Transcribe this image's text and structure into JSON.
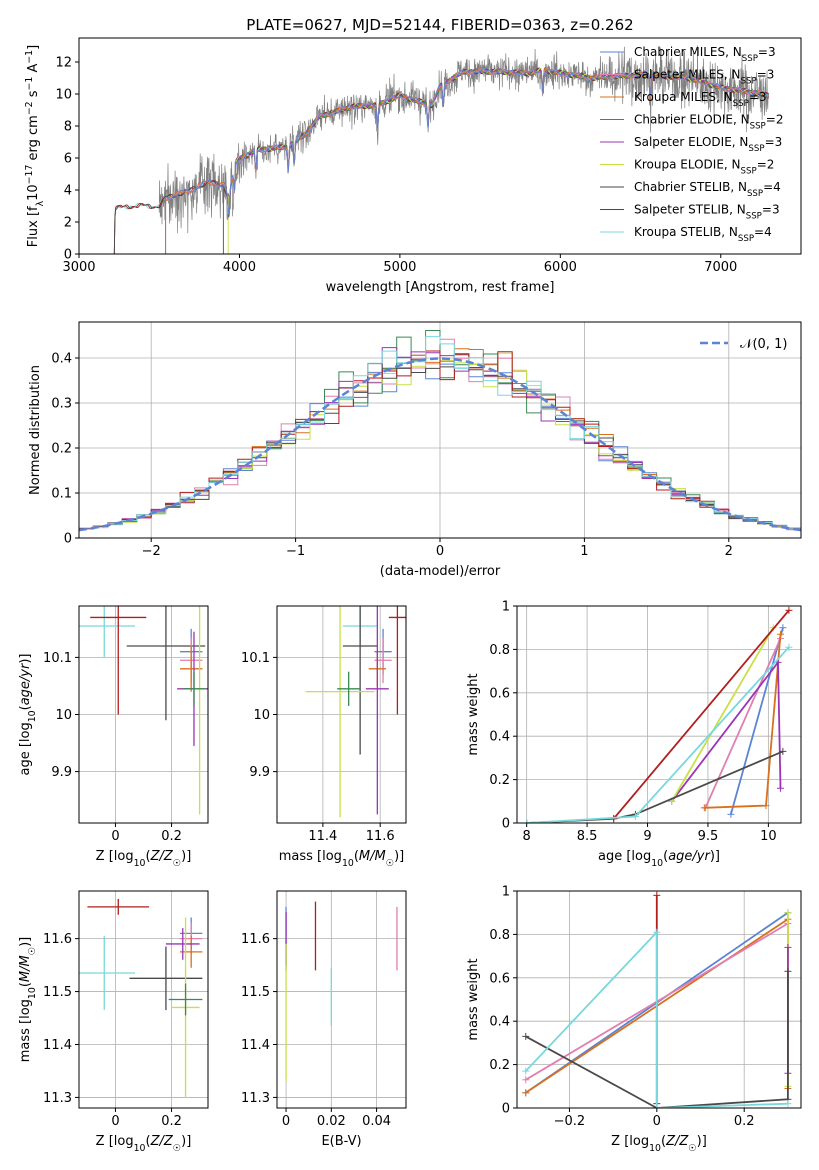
{
  "figure_title": "PLATE=0627, MJD=52144, FIBERID=0363, z=0.262",
  "colors": {
    "Chabrier MILES": "#5b84d6",
    "Salpeter MILES": "#e07fb0",
    "Kroupa MILES": "#d9701e",
    "Chabrier ELODIE": "#3a8a55",
    "Salpeter ELODIE": "#9b35b5",
    "Kroupa ELODIE": "#c8e046",
    "Chabrier STELIB": "#4a4a4a",
    "Salpeter STELIB": "#b01e1e",
    "Kroupa STELIB": "#78d8de",
    "data": "#808080",
    "normal": "#5b84d6"
  },
  "chart_data": [
    {
      "id": "spectrum",
      "type": "line",
      "title": "PLATE=0627, MJD=52144, FIBERID=0363, z=0.262",
      "xlabel": "wavelength [Angstrom, rest frame]",
      "ylabel": "Flux [fλ10⁻¹⁷ erg cm⁻² s⁻¹ A⁻¹]",
      "xlim": [
        3000,
        7500
      ],
      "ylim": [
        0,
        13.5
      ],
      "xticks": [
        3000,
        4000,
        5000,
        6000,
        7000
      ],
      "yticks": [
        0,
        2,
        4,
        6,
        8,
        10,
        12
      ],
      "grid": false,
      "legend_position": "top-right",
      "series": [
        {
          "name": "Chabrier MILES, N",
          "sub": "SSP",
          "n": "=3",
          "start": 3540
        },
        {
          "name": "Salpeter MILES, N",
          "sub": "SSP",
          "n": "=3",
          "start": 3540
        },
        {
          "name": "Kroupa MILES, N",
          "sub": "SSP",
          "n": "=3",
          "start": 3540
        },
        {
          "name": "Chabrier ELODIE, N",
          "sub": "SSP",
          "n": "=2",
          "start": 3900
        },
        {
          "name": "Salpeter ELODIE, N",
          "sub": "SSP",
          "n": "=3",
          "start": 3900
        },
        {
          "name": "Kroupa ELODIE, N",
          "sub": "SSP",
          "n": "=2",
          "start": 3930
        },
        {
          "name": "Chabrier STELIB, N",
          "sub": "SSP",
          "n": "=4",
          "start": 3220
        },
        {
          "name": "Salpeter STELIB, N",
          "sub": "SSP",
          "n": "=3",
          "start": 3220
        },
        {
          "name": "Kroupa STELIB, N",
          "sub": "SSP",
          "n": "=4",
          "start": 3220
        }
      ],
      "continuum": [
        [
          3220,
          0
        ],
        [
          3225,
          2.8
        ],
        [
          3300,
          3.0
        ],
        [
          3500,
          3.0
        ],
        [
          3540,
          3.5
        ],
        [
          3700,
          4.0
        ],
        [
          3800,
          4.5
        ],
        [
          3900,
          4.3
        ],
        [
          3930,
          3.6
        ],
        [
          3980,
          5.8
        ],
        [
          4100,
          6.5
        ],
        [
          4300,
          6.7
        ],
        [
          4400,
          7.4
        ],
        [
          4500,
          8.6
        ],
        [
          4700,
          9.2
        ],
        [
          4860,
          9.3
        ],
        [
          5000,
          9.9
        ],
        [
          5200,
          9.3
        ],
        [
          5250,
          10.5
        ],
        [
          5400,
          11.4
        ],
        [
          5600,
          11.4
        ],
        [
          5800,
          11.3
        ],
        [
          5900,
          11.5
        ],
        [
          6000,
          11.3
        ],
        [
          6200,
          11.0
        ],
        [
          6500,
          11.2
        ],
        [
          6800,
          11.0
        ],
        [
          7000,
          10.4
        ],
        [
          7200,
          10.1
        ],
        [
          7300,
          9.9
        ]
      ],
      "data_range": [
        3500,
        7300
      ]
    },
    {
      "id": "residuals",
      "type": "histogram",
      "xlabel": "(data-model)/error",
      "ylabel": "Normed distribution",
      "xlim": [
        -2.5,
        2.5
      ],
      "ylim": [
        0,
        0.48
      ],
      "xticks": [
        -2,
        -1,
        0,
        1,
        2
      ],
      "yticks": [
        0,
        0.1,
        0.2,
        0.3,
        0.4
      ],
      "grid": true,
      "legend_position": "top-right",
      "normal_label": "N(0,1)",
      "bin_width": 0.1
    },
    {
      "id": "age_vs_Z",
      "type": "errorbar",
      "xlabel": "Z [log10(Z/Z☉)]",
      "ylabel": "age  [log10(age/yr)]",
      "xlim": [
        -0.13,
        0.33
      ],
      "ylim": [
        9.81,
        10.19
      ],
      "xticks": [
        0.0,
        0.2
      ],
      "yticks": [
        9.9,
        10.0,
        10.1
      ],
      "grid": true,
      "points": [
        {
          "s": "Kroupa STELIB",
          "x": -0.04,
          "xerr": 0.11,
          "y": 10.155,
          "yerr": 0.055
        },
        {
          "s": "Salpeter STELIB",
          "x": 0.01,
          "xerr": 0.1,
          "y": 10.17,
          "yerr": 0.17
        },
        {
          "s": "Chabrier STELIB",
          "x": 0.18,
          "xerr": 0.14,
          "y": 10.12,
          "yerr": 0.13
        },
        {
          "s": "Chabrier MILES",
          "x": 0.27,
          "xerr": 0.04,
          "y": 10.11,
          "yerr": 0.04
        },
        {
          "s": "Salpeter MILES",
          "x": 0.27,
          "xerr": 0.04,
          "y": 10.095,
          "yerr": 0.04
        },
        {
          "s": "Kroupa MILES",
          "x": 0.27,
          "xerr": 0.04,
          "y": 10.08,
          "yerr": 0.04
        },
        {
          "s": "Salpeter ELODIE",
          "x": 0.28,
          "xerr": 0.06,
          "y": 10.045,
          "yerr": 0.1
        },
        {
          "s": "Kroupa ELODIE",
          "x": 0.3,
          "xerr": 0.02,
          "y": 10.045,
          "yerr": 0.22
        },
        {
          "s": "Chabrier ELODIE",
          "x": 0.28,
          "xerr": 0.04,
          "y": 10.045,
          "yerr": 0.03
        }
      ]
    },
    {
      "id": "age_vs_mass",
      "type": "errorbar",
      "xlabel": "mass [log10(M/M☉)]",
      "ylabel": "",
      "xlim": [
        11.24,
        11.69
      ],
      "ylim": [
        9.81,
        10.19
      ],
      "xticks": [
        11.4,
        11.6
      ],
      "yticks": [
        9.9,
        10.0,
        10.1
      ],
      "grid": true,
      "points": [
        {
          "s": "Kroupa STELIB",
          "x": 11.53,
          "xerr": 0.06,
          "y": 10.155,
          "yerr": 0.03
        },
        {
          "s": "Salpeter STELIB",
          "x": 11.66,
          "xerr": 0.03,
          "y": 10.17,
          "yerr": 0.17
        },
        {
          "s": "Chabrier STELIB",
          "x": 11.53,
          "xerr": 0.06,
          "y": 10.12,
          "yerr": 0.19
        },
        {
          "s": "Chabrier MILES",
          "x": 11.61,
          "xerr": 0.03,
          "y": 10.11,
          "yerr": 0.04
        },
        {
          "s": "Salpeter MILES",
          "x": 11.61,
          "xerr": 0.03,
          "y": 10.095,
          "yerr": 0.04
        },
        {
          "s": "Kroupa MILES",
          "x": 11.59,
          "xerr": 0.03,
          "y": 10.08,
          "yerr": 0.03
        },
        {
          "s": "Salpeter ELODIE",
          "x": 11.59,
          "xerr": 0.04,
          "y": 10.045,
          "yerr": 0.22
        },
        {
          "s": "Kroupa ELODIE",
          "x": 11.46,
          "xerr": 0.12,
          "y": 10.04,
          "yerr": 0.22
        },
        {
          "s": "Chabrier ELODIE",
          "x": 11.49,
          "xerr": 0.04,
          "y": 10.045,
          "yerr": 0.03
        }
      ]
    },
    {
      "id": "massweight_vs_age",
      "type": "line",
      "xlabel": "age  [log10(age/yr)]",
      "ylabel": "mass weight",
      "xlim": [
        7.92,
        10.27
      ],
      "ylim": [
        0,
        1.0
      ],
      "xticks": [
        8.0,
        8.5,
        9.0,
        9.5,
        10.0
      ],
      "yticks": [
        0.0,
        0.2,
        0.4,
        0.6,
        0.8,
        1.0
      ],
      "grid": true,
      "series": [
        {
          "s": "Chabrier MILES",
          "x": [
            9.69,
            10.12
          ],
          "y": [
            0.04,
            0.9
          ]
        },
        {
          "s": "Salpeter MILES",
          "x": [
            9.48,
            10.1
          ],
          "y": [
            0.07,
            0.85
          ]
        },
        {
          "s": "Kroupa MILES",
          "x": [
            9.47,
            9.98,
            10.1
          ],
          "y": [
            0.07,
            0.08,
            0.87
          ]
        },
        {
          "s": "Salpeter ELODIE",
          "x": [
            9.2,
            10.08,
            10.1
          ],
          "y": [
            0.1,
            0.74,
            0.16
          ]
        },
        {
          "s": "Kroupa ELODIE",
          "x": [
            9.2,
            10.04
          ],
          "y": [
            0.1,
            0.9
          ]
        },
        {
          "s": "Chabrier STELIB",
          "x": [
            8.0,
            8.72,
            8.9,
            10.12
          ],
          "y": [
            0.0,
            0.02,
            0.04,
            0.33
          ]
        },
        {
          "s": "Salpeter STELIB",
          "x": [
            8.72,
            10.17
          ],
          "y": [
            0.02,
            0.98
          ]
        },
        {
          "s": "Kroupa STELIB",
          "x": [
            8.0,
            8.9,
            10.17
          ],
          "y": [
            0.0,
            0.03,
            0.81
          ]
        }
      ]
    },
    {
      "id": "mass_vs_Z",
      "type": "errorbar",
      "xlabel": "Z [log10(Z/Z☉)]",
      "ylabel": "mass [log10(M/M☉)]",
      "xlim": [
        -0.13,
        0.33
      ],
      "ylim": [
        11.28,
        11.69
      ],
      "xticks": [
        0.0,
        0.2
      ],
      "yticks": [
        11.3,
        11.4,
        11.5,
        11.6
      ],
      "grid": true,
      "points": [
        {
          "s": "Kroupa STELIB",
          "x": -0.04,
          "xerr": 0.11,
          "y": 11.535,
          "yerr": 0.07
        },
        {
          "s": "Salpeter STELIB",
          "x": 0.01,
          "xerr": 0.11,
          "y": 11.66,
          "yerr": 0.015
        },
        {
          "s": "Chabrier STELIB",
          "x": 0.18,
          "xerr": 0.13,
          "y": 11.525,
          "yerr": 0.06
        },
        {
          "s": "Chabrier MILES",
          "x": 0.27,
          "xerr": 0.04,
          "y": 11.61,
          "yerr": 0.03
        },
        {
          "s": "Salpeter MILES",
          "x": 0.27,
          "xerr": 0.04,
          "y": 11.6,
          "yerr": 0.03
        },
        {
          "s": "Kroupa MILES",
          "x": 0.27,
          "xerr": 0.04,
          "y": 11.575,
          "yerr": 0.03
        },
        {
          "s": "Salpeter ELODIE",
          "x": 0.24,
          "xerr": 0.06,
          "y": 11.59,
          "yerr": 0.03
        },
        {
          "s": "Kroupa ELODIE",
          "x": 0.25,
          "xerr": 0.05,
          "y": 11.47,
          "yerr": 0.17
        },
        {
          "s": "Chabrier ELODIE",
          "x": 0.25,
          "xerr": 0.06,
          "y": 11.485,
          "yerr": 0.03
        }
      ]
    },
    {
      "id": "mass_vs_EBV",
      "type": "errorbar",
      "xlabel": "E(B-V)",
      "ylabel": "",
      "xlim": [
        -0.004,
        0.053
      ],
      "ylim": [
        11.28,
        11.69
      ],
      "xticks": [
        0.0,
        0.02,
        0.04
      ],
      "yticks": [
        11.3,
        11.4,
        11.5,
        11.6
      ],
      "grid": true,
      "points": [
        {
          "s": "Chabrier MILES",
          "x": 0.0,
          "xerr": 0,
          "y": 11.6,
          "yerr": 0.06
        },
        {
          "s": "Salpeter ELODIE",
          "x": 0.0,
          "xerr": 0,
          "y": 11.6,
          "yerr": 0.05
        },
        {
          "s": "Kroupa ELODIE",
          "x": 0.0,
          "xerr": 0,
          "y": 11.46,
          "yerr": 0.13
        },
        {
          "s": "Salpeter STELIB",
          "x": 0.013,
          "xerr": 0,
          "y": 11.605,
          "yerr": 0.065
        },
        {
          "s": "Kroupa STELIB",
          "x": 0.02,
          "xerr": 0,
          "y": 11.49,
          "yerr": 0.055
        },
        {
          "s": "Salpeter MILES",
          "x": 0.049,
          "xerr": 0,
          "y": 11.6,
          "yerr": 0.06
        }
      ]
    },
    {
      "id": "massweight_vs_Z",
      "type": "line",
      "xlabel": "Z [log10(Z/Z☉)]",
      "ylabel": "mass weight",
      "xlim": [
        -0.32,
        0.33
      ],
      "ylim": [
        0,
        1.0
      ],
      "xticks": [
        -0.2,
        0.0,
        0.2
      ],
      "yticks": [
        0.0,
        0.2,
        0.4,
        0.6,
        0.8,
        1.0
      ],
      "grid": true,
      "series": [
        {
          "s": "Chabrier MILES",
          "x": [
            -0.3,
            0.3
          ],
          "y": [
            0.07,
            0.9
          ]
        },
        {
          "s": "Kroupa MILES",
          "x": [
            -0.3,
            0.3,
            0.3
          ],
          "y": [
            0.07,
            0.87,
            0.09
          ]
        },
        {
          "s": "Salpeter MILES",
          "x": [
            -0.3,
            0.3
          ],
          "y": [
            0.13,
            0.85
          ]
        },
        {
          "s": "Kroupa ELODIE",
          "x": [
            0.3,
            0.3
          ],
          "y": [
            0.1,
            0.9
          ]
        },
        {
          "s": "Salpeter ELODIE",
          "x": [
            0.3,
            0.3
          ],
          "y": [
            0.16,
            0.74
          ]
        },
        {
          "s": "Chabrier STELIB",
          "x": [
            -0.3,
            0.0,
            0.3,
            0.3
          ],
          "y": [
            0.33,
            0.0,
            0.04,
            0.63
          ]
        },
        {
          "s": "Salpeter STELIB",
          "x": [
            0.0,
            0.0
          ],
          "y": [
            0.02,
            0.98
          ]
        },
        {
          "s": "Kroupa STELIB",
          "x": [
            -0.3,
            0.0,
            0.0,
            0.3
          ],
          "y": [
            0.17,
            0.81,
            0.0,
            0.02
          ]
        }
      ]
    }
  ]
}
